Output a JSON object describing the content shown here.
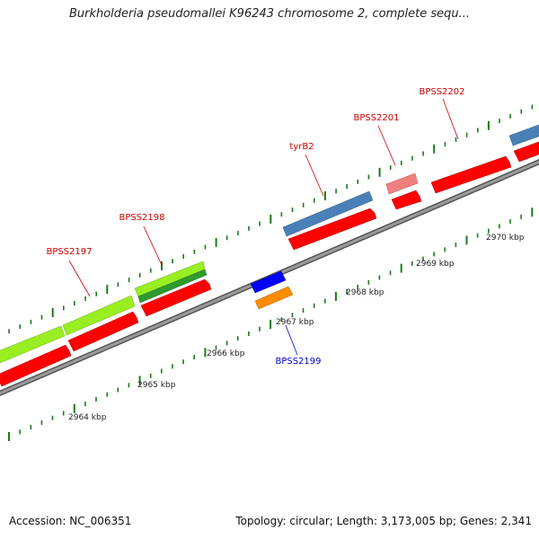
{
  "title": "Burkholderia pseudomallei K96243 chromosome 2, complete sequ...",
  "footer": {
    "accession": "Accession: NC_006351",
    "stats": "Topology: circular; Length: 3,173,005 bp; Genes: 2,341"
  },
  "colors": {
    "cds": "#ff0000",
    "backbone": "#808080",
    "tick": "#1a7a1a",
    "label_red": "#cc0000",
    "label_blue": "#0000cc",
    "yellowgreen": "#99ee22",
    "green": "#2e9b2e",
    "steelblue": "#4a80b8",
    "pink": "#f08080",
    "blue": "#0000ff",
    "orange": "#ff8c00"
  },
  "kbp_labels": [
    "2964 kbp",
    "2965 kbp",
    "2966 kbp",
    "2967 kbp",
    "2968 kbp",
    "2969 kbp",
    "2970 kbp"
  ],
  "gene_labels": [
    {
      "text": "BPSS2197",
      "color": "red"
    },
    {
      "text": "BPSS2198",
      "color": "red"
    },
    {
      "text": "BPSS2199",
      "color": "blue"
    },
    {
      "text": "tyrB2",
      "color": "red"
    },
    {
      "text": "BPSS2201",
      "color": "red"
    },
    {
      "text": "BPSS2202",
      "color": "red"
    }
  ]
}
